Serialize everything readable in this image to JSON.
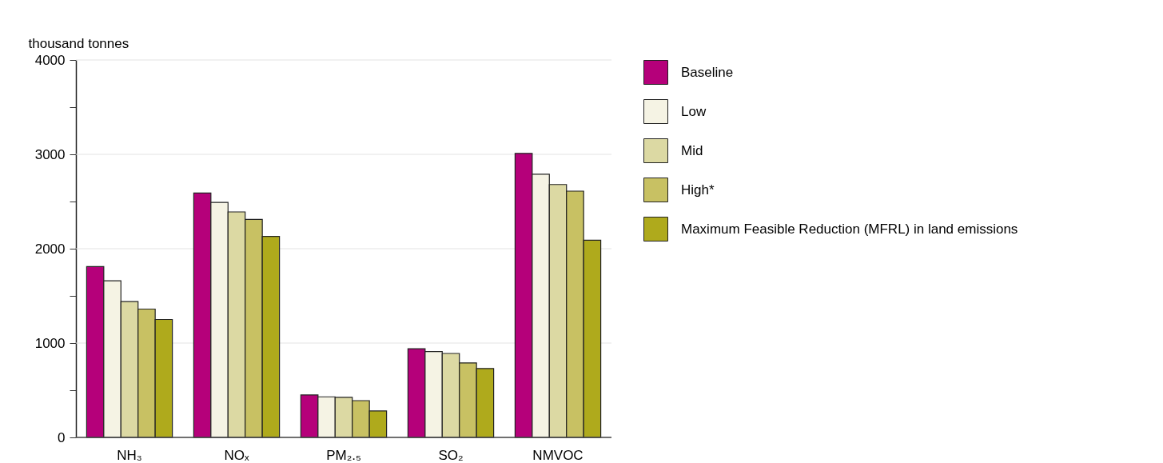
{
  "chart_data": {
    "type": "bar",
    "ylabel": "thousand tonnes",
    "categories": [
      "NH₃",
      "NOₓ",
      "PM₂.₅",
      "SO₂",
      "NMVOC"
    ],
    "series": [
      {
        "name": "Baseline",
        "color": "#b5007a",
        "values": [
          1810,
          2590,
          450,
          940,
          3010
        ]
      },
      {
        "name": "Low",
        "color": "#f5f3e4",
        "values": [
          1660,
          2490,
          430,
          910,
          2790
        ]
      },
      {
        "name": "Mid",
        "color": "#dcd9a3",
        "values": [
          1440,
          2390,
          425,
          890,
          2680
        ]
      },
      {
        "name": "High*",
        "color": "#c8c163",
        "values": [
          1360,
          2310,
          390,
          790,
          2610
        ]
      },
      {
        "name": "Maximum Feasible Reduction (MFRL) in land emissions",
        "color": "#afaa1c",
        "values": [
          1250,
          2130,
          280,
          730,
          2090
        ]
      }
    ],
    "ylim": [
      0,
      4000
    ],
    "yticks": [
      0,
      {
        "value": 500,
        "label": null
      },
      1000,
      {
        "value": 1500,
        "label": null
      },
      2000,
      {
        "value": 2500,
        "label": null
      },
      3000,
      {
        "value": 3500,
        "label": null
      },
      4000
    ],
    "grid": "y",
    "legend": "top right"
  }
}
